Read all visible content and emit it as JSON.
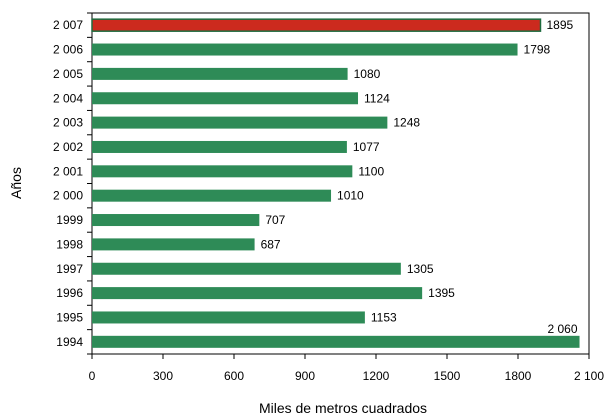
{
  "chart_data": {
    "type": "bar",
    "orientation": "horizontal",
    "categories": [
      "2 007",
      "2 006",
      "2 005",
      "2 004",
      "2 003",
      "2 002",
      "2 001",
      "2 000",
      "1999",
      "1998",
      "1997",
      "1996",
      "1995",
      "1994"
    ],
    "values": [
      1895,
      1798,
      1080,
      1124,
      1248,
      1077,
      1100,
      1010,
      707,
      687,
      1305,
      1395,
      1153,
      2060
    ],
    "value_labels": [
      "1895",
      "1798",
      "1080",
      "1124",
      "1248",
      "1077",
      "1100",
      "1010",
      "707",
      "687",
      "1305",
      "1395",
      "1153",
      "2 060"
    ],
    "xlabel": "Miles de metros cuadrados",
    "ylabel": "Años",
    "xlim": [
      0,
      2100
    ],
    "xticks": [
      0,
      300,
      600,
      900,
      1200,
      1500,
      1800,
      2100
    ],
    "xtick_labels": [
      "0",
      "300",
      "600",
      "900",
      "1200",
      "1500",
      "1800",
      "2 100"
    ],
    "grid": false,
    "colors": {
      "bar": "#2e8b57",
      "highlight": "#cc2a1e",
      "highlight_border": "#1e6b3e"
    },
    "highlight_index": 0
  }
}
